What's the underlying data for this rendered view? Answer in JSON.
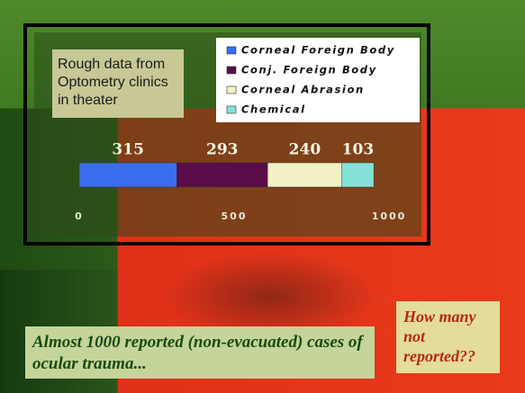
{
  "chart_data": {
    "type": "bar",
    "orientation": "horizontal",
    "stacked": true,
    "series": [
      {
        "name": "Corneal Foreign Body",
        "color": "#3a6cf0",
        "values": [
          315
        ]
      },
      {
        "name": "Conj. Foreign Body",
        "color": "#5a0c48",
        "values": [
          293
        ]
      },
      {
        "name": "Corneal Abrasion",
        "color": "#f2f2c4",
        "values": [
          240
        ]
      },
      {
        "name": "Chemical",
        "color": "#84e2d8",
        "values": [
          103
        ]
      }
    ],
    "xlim": [
      0,
      1000
    ],
    "xticks": [
      0,
      500,
      1000
    ],
    "annotations": [
      "Rough data from Optometry clinics in theater",
      "Almost 1000 reported (non-evacuated) cases of ocular trauma...",
      "How many not reported??"
    ]
  }
}
